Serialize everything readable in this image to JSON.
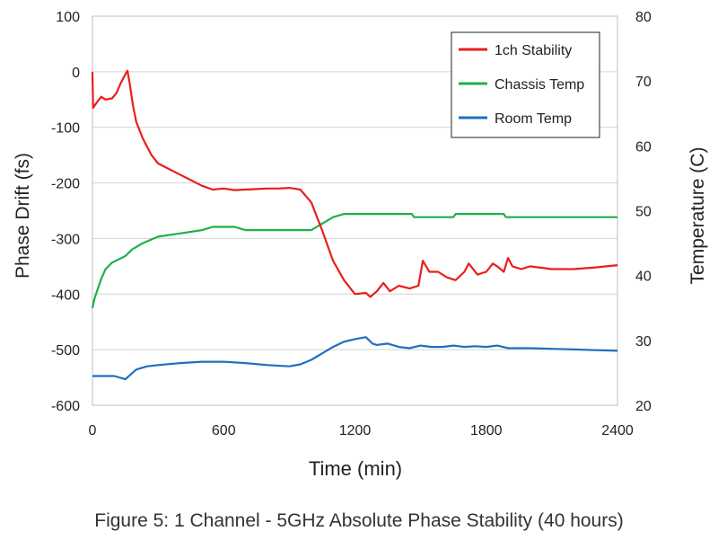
{
  "caption": "Figure 5:  1 Channel - 5GHz Absolute Phase Stability (40 hours)",
  "chart_data": {
    "type": "line",
    "xlabel": "Time (min)",
    "ylabel_left": "Phase Drift (fs)",
    "ylabel_right": "Temperature (C)",
    "xlim": [
      0,
      2400
    ],
    "ylim_left": [
      -600,
      100
    ],
    "ylim_right": [
      20,
      80
    ],
    "x_ticks": [
      0,
      600,
      1200,
      1800,
      2400
    ],
    "y_left_ticks": [
      100,
      0,
      -100,
      -200,
      -300,
      -400,
      -500,
      -600
    ],
    "y_right_ticks": [
      80,
      70,
      60,
      50,
      40,
      30,
      20
    ],
    "grid": "horizontal",
    "legend_position": "top-right",
    "series": [
      {
        "name": "1ch Stability",
        "color": "#e8201a",
        "axis": "left",
        "points": [
          [
            0,
            0
          ],
          [
            3,
            -65
          ],
          [
            20,
            -55
          ],
          [
            40,
            -45
          ],
          [
            60,
            -50
          ],
          [
            90,
            -48
          ],
          [
            110,
            -38
          ],
          [
            130,
            -20
          ],
          [
            150,
            -5
          ],
          [
            160,
            2
          ],
          [
            170,
            -20
          ],
          [
            185,
            -60
          ],
          [
            200,
            -90
          ],
          [
            230,
            -120
          ],
          [
            270,
            -150
          ],
          [
            300,
            -165
          ],
          [
            350,
            -175
          ],
          [
            400,
            -185
          ],
          [
            450,
            -195
          ],
          [
            500,
            -205
          ],
          [
            550,
            -212
          ],
          [
            600,
            -210
          ],
          [
            650,
            -213
          ],
          [
            700,
            -212
          ],
          [
            750,
            -211
          ],
          [
            800,
            -210
          ],
          [
            850,
            -210
          ],
          [
            900,
            -209
          ],
          [
            950,
            -212
          ],
          [
            1000,
            -235
          ],
          [
            1050,
            -285
          ],
          [
            1100,
            -340
          ],
          [
            1150,
            -375
          ],
          [
            1200,
            -400
          ],
          [
            1250,
            -398
          ],
          [
            1270,
            -405
          ],
          [
            1300,
            -395
          ],
          [
            1330,
            -380
          ],
          [
            1360,
            -395
          ],
          [
            1400,
            -385
          ],
          [
            1450,
            -390
          ],
          [
            1490,
            -385
          ],
          [
            1510,
            -340
          ],
          [
            1540,
            -360
          ],
          [
            1580,
            -360
          ],
          [
            1620,
            -370
          ],
          [
            1660,
            -375
          ],
          [
            1700,
            -360
          ],
          [
            1720,
            -345
          ],
          [
            1760,
            -365
          ],
          [
            1800,
            -360
          ],
          [
            1830,
            -345
          ],
          [
            1850,
            -350
          ],
          [
            1880,
            -360
          ],
          [
            1900,
            -335
          ],
          [
            1920,
            -350
          ],
          [
            1960,
            -355
          ],
          [
            2000,
            -350
          ],
          [
            2100,
            -355
          ],
          [
            2200,
            -355
          ],
          [
            2300,
            -352
          ],
          [
            2400,
            -348
          ]
        ]
      },
      {
        "name": "Chassis Temp",
        "color": "#1fb04b",
        "axis": "right",
        "points": [
          [
            0,
            35
          ],
          [
            10,
            36.5
          ],
          [
            25,
            38
          ],
          [
            40,
            39.5
          ],
          [
            60,
            41
          ],
          [
            90,
            42
          ],
          [
            120,
            42.5
          ],
          [
            150,
            43
          ],
          [
            180,
            44
          ],
          [
            230,
            45
          ],
          [
            300,
            46
          ],
          [
            400,
            46.5
          ],
          [
            500,
            47
          ],
          [
            550,
            47.5
          ],
          [
            650,
            47.5
          ],
          [
            700,
            47
          ],
          [
            1000,
            47
          ],
          [
            1050,
            48
          ],
          [
            1100,
            49
          ],
          [
            1150,
            49.5
          ],
          [
            1460,
            49.5
          ],
          [
            1470,
            49
          ],
          [
            1650,
            49
          ],
          [
            1660,
            49.5
          ],
          [
            1880,
            49.5
          ],
          [
            1890,
            49
          ],
          [
            2400,
            49
          ]
        ]
      },
      {
        "name": "Room Temp",
        "color": "#1f70bf",
        "axis": "right",
        "points": [
          [
            0,
            24.5
          ],
          [
            50,
            24.5
          ],
          [
            100,
            24.5
          ],
          [
            150,
            24
          ],
          [
            200,
            25.5
          ],
          [
            250,
            26
          ],
          [
            300,
            26.2
          ],
          [
            400,
            26.5
          ],
          [
            500,
            26.7
          ],
          [
            600,
            26.7
          ],
          [
            700,
            26.5
          ],
          [
            800,
            26.2
          ],
          [
            900,
            26
          ],
          [
            950,
            26.3
          ],
          [
            1000,
            27
          ],
          [
            1050,
            28
          ],
          [
            1100,
            29
          ],
          [
            1150,
            29.8
          ],
          [
            1200,
            30.2
          ],
          [
            1250,
            30.5
          ],
          [
            1280,
            29.5
          ],
          [
            1300,
            29.3
          ],
          [
            1350,
            29.5
          ],
          [
            1400,
            29
          ],
          [
            1450,
            28.8
          ],
          [
            1500,
            29.2
          ],
          [
            1550,
            29
          ],
          [
            1600,
            29
          ],
          [
            1650,
            29.2
          ],
          [
            1700,
            29
          ],
          [
            1750,
            29.1
          ],
          [
            1800,
            29
          ],
          [
            1850,
            29.2
          ],
          [
            1900,
            28.8
          ],
          [
            2000,
            28.8
          ],
          [
            2100,
            28.7
          ],
          [
            2200,
            28.6
          ],
          [
            2300,
            28.5
          ],
          [
            2400,
            28.4
          ]
        ]
      }
    ]
  }
}
